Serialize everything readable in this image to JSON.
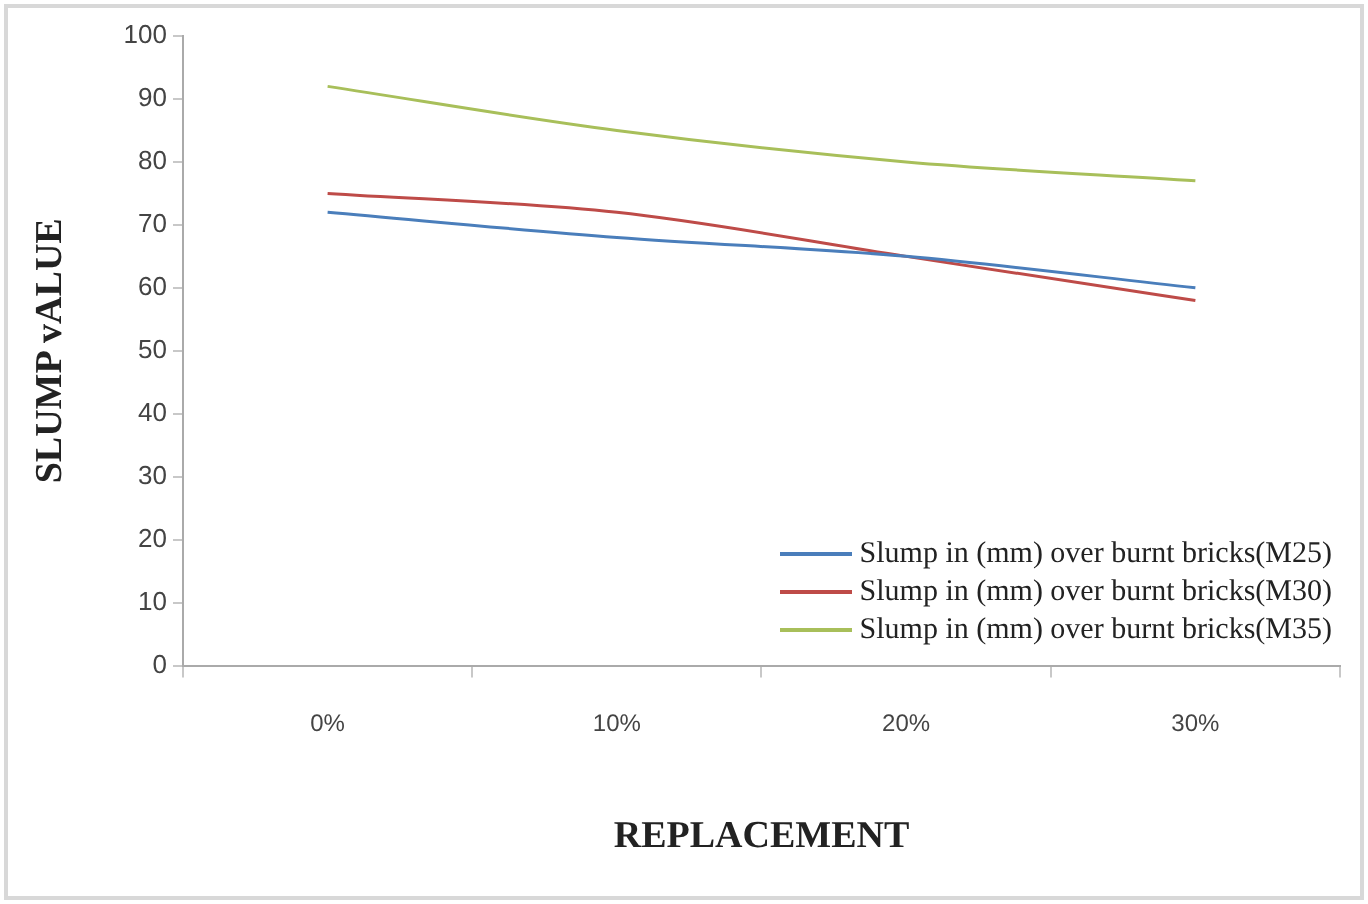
{
  "chart_data": {
    "type": "line",
    "xlabel": "REPLACEMENT",
    "ylabel": "SLUMP vALUE",
    "categories": [
      "0%",
      "10%",
      "20%",
      "30%"
    ],
    "series": [
      {
        "name": "Slump in (mm) over burnt bricks(M25)",
        "color": "#4a7ebb",
        "values": [
          72,
          68,
          65,
          60
        ]
      },
      {
        "name": "Slump in (mm) over burnt bricks(M30)",
        "color": "#be4b48",
        "values": [
          75,
          72,
          65,
          58
        ]
      },
      {
        "name": "Slump in (mm) over burnt bricks(M35)",
        "color": "#a8bf5a",
        "values": [
          92,
          85,
          80,
          77
        ]
      }
    ],
    "ylim": [
      0,
      100
    ],
    "yticks": [
      0,
      10,
      20,
      30,
      40,
      50,
      60,
      70,
      80,
      90,
      100
    ],
    "grid": false,
    "legend": "bottom right",
    "marker": "none",
    "line_style": "solid"
  }
}
